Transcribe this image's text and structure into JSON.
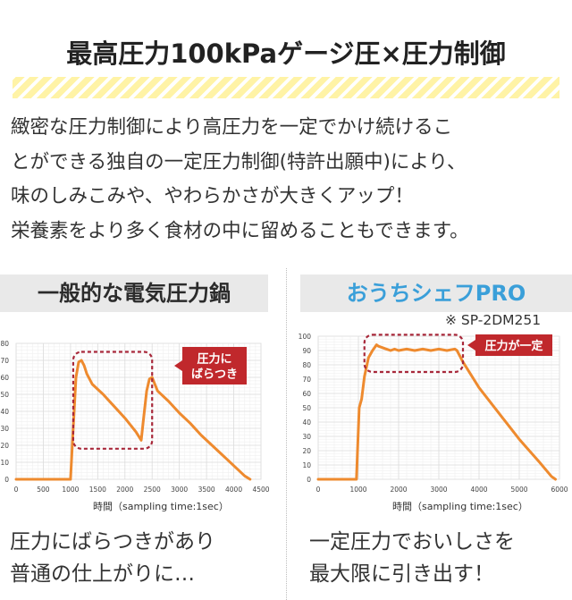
{
  "headline": "最高圧力100kPaゲージ圧×圧力制御",
  "intro_lines": [
    "緻密な圧力制御により高圧力を一定でかけ続けるこ",
    "とができる独自の一定圧力制御(特許出願中)により、",
    "味のしみこみや、やわらかさが大きくアップ！",
    "栄養素をより多く食材の中に留めることもできます。"
  ],
  "left_panel": {
    "title": "一般的な電気圧力鍋",
    "callout_lines": [
      "圧力に",
      "ばらつき"
    ],
    "xlabel": "時間",
    "xlabel_note": "（sampling time:1sec）",
    "caption_lines": [
      "圧力にばらつきがあり",
      "普通の仕上がりに…"
    ]
  },
  "right_panel": {
    "title": "おうちシェフPRO",
    "model_note": "※ SP-2DM251",
    "callout": "圧力が一定",
    "xlabel": "時間",
    "xlabel_note": "（sampling time:1sec）",
    "caption_lines": [
      "一定圧力でおいしさを",
      "最大限に引き出す！"
    ]
  },
  "colors": {
    "line": "#ee8a2e",
    "callout_fill": "#c0282c",
    "dashed_box": "#a8283a",
    "highlight_band": "#fff3a6",
    "accent_title": "#3a9fd9"
  },
  "chart_data": [
    {
      "type": "line",
      "title": "一般的な電気圧力鍋",
      "xlabel": "時間（sampling time:1sec）",
      "ylabel": "",
      "xlim": [
        0,
        4500
      ],
      "ylim": [
        0,
        80
      ],
      "xticks": [
        0,
        500,
        1000,
        1500,
        2000,
        2500,
        3000,
        3500,
        4000,
        4500
      ],
      "yticks": [
        0,
        10,
        20,
        30,
        40,
        50,
        60,
        70,
        80
      ],
      "grid": true,
      "series": [
        {
          "x": [
            0,
            1000,
            1050,
            1100,
            1150,
            1200,
            1250,
            1300,
            1400,
            1600,
            1800,
            2000,
            2200,
            2300,
            2350,
            2400,
            2450,
            2500,
            2600,
            2800,
            3000,
            3200,
            3400,
            3600,
            3800,
            4000,
            4200,
            4300
          ],
          "y": [
            0,
            0,
            30,
            60,
            69,
            70,
            67,
            62,
            56,
            50,
            43,
            36,
            28,
            23,
            38,
            52,
            59,
            60,
            52,
            46,
            39,
            33,
            26,
            20,
            14,
            8,
            2,
            0
          ]
        }
      ]
    },
    {
      "type": "line",
      "title": "おうちシェフPRO",
      "xlabel": "時間（sampling time:1sec）",
      "ylabel": "",
      "xlim": [
        0,
        6000
      ],
      "ylim": [
        0,
        100
      ],
      "xticks": [
        0,
        1000,
        2000,
        3000,
        4000,
        5000,
        6000
      ],
      "yticks": [
        0,
        10,
        20,
        30,
        40,
        50,
        60,
        70,
        80,
        90,
        100
      ],
      "grid": true,
      "series": [
        {
          "x": [
            0,
            950,
            1020,
            1080,
            1150,
            1250,
            1350,
            1450,
            1500,
            1600,
            1700,
            1800,
            1900,
            2000,
            2200,
            2400,
            2600,
            2800,
            3000,
            3200,
            3400,
            3450,
            3600,
            4000,
            4500,
            5000,
            5500,
            5800,
            5900
          ],
          "y": [
            0,
            0,
            50,
            56,
            72,
            85,
            90,
            94,
            93,
            92,
            91,
            90,
            91,
            90,
            91,
            90,
            91,
            90,
            91,
            90,
            91,
            90,
            82,
            64,
            46,
            28,
            12,
            2,
            0
          ]
        }
      ]
    }
  ]
}
